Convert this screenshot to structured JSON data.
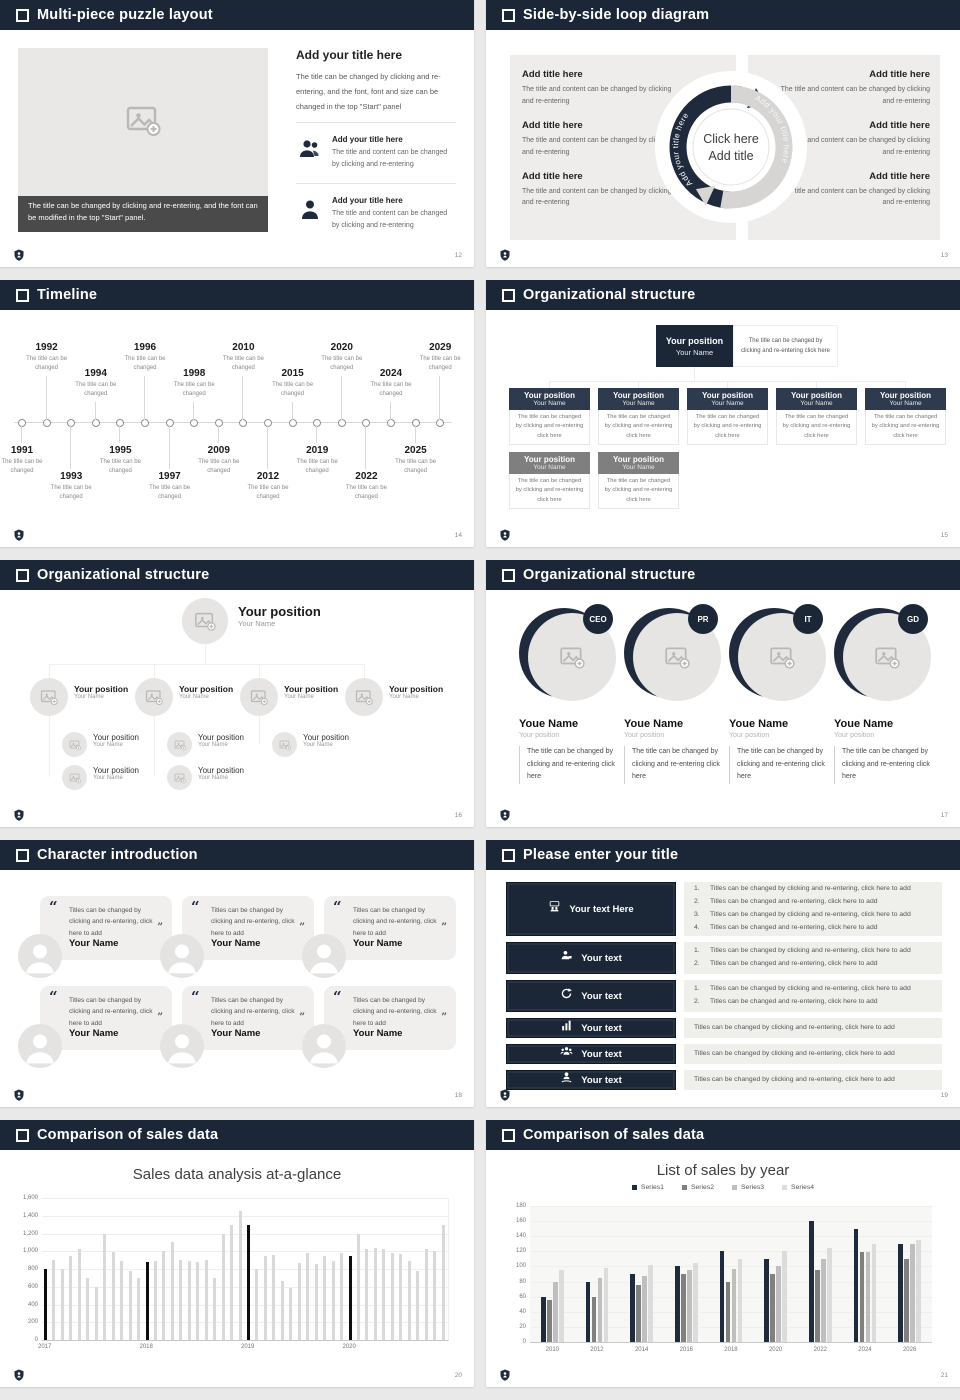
{
  "page": {
    "background": "#e9e9e9",
    "slide_background": "#ffffff"
  },
  "colors": {
    "header_navy": "#1b2737",
    "caption_gray": "#4a4a4a",
    "panel_gray": "#eeedeb",
    "org_gray_header": "#7f7f7f",
    "bar_light": "#d9d9d9",
    "bar_highlight": "#0d0d0d",
    "series1": "#1f2a3c",
    "series2": "#808080",
    "series3": "#bfbfbf",
    "series4": "#dcdcdc"
  },
  "slides": {
    "s12": {
      "page_no": "12",
      "title": "Multi-piece puzzle layout",
      "image_caption": "The title can be changed by clicking and re-entering, and the font can be modified in the top \"Start\" panel.",
      "right_title": "Add your title here",
      "right_body": "The title can be changed by clicking and re-entering, and the font, font and size can be changed in the top \"Start\" panel",
      "items": [
        {
          "icon": "people-icon",
          "title": "Add your title here",
          "body": "The title and content can be changed by clicking and re-entering"
        },
        {
          "icon": "person-icon",
          "title": "Add your title here",
          "body": "The title and content can be changed by clicking and re-entering"
        }
      ]
    },
    "s13": {
      "page_no": "13",
      "title": "Side-by-side loop diagram",
      "block_title": "Add title here",
      "block_body": "The title and content can be changed by clicking and re-entering",
      "left_block_count": 3,
      "right_block_count": 3,
      "arc_text_left": "Add your title here",
      "arc_text_right": "Add your title here",
      "center_line1": "Click here",
      "center_line2": "Add title"
    },
    "s14": {
      "page_no": "14",
      "title": "Timeline",
      "entry_caption": "The title can be changed",
      "years": [
        "1991",
        "1992",
        "1993",
        "1994",
        "1995",
        "1996",
        "1997",
        "1998",
        "2009",
        "2010",
        "2012",
        "2015",
        "2019",
        "2020",
        "2022",
        "2024",
        "2025",
        "2029"
      ]
    },
    "s15": {
      "page_no": "15",
      "title": "Organizational structure",
      "position_label": "Your position",
      "name_label": "Your Name",
      "note_text": "The title can be changed by clicking and re-entering click here",
      "card_body": "The title can be changed by clicking and re-entering click here",
      "navy_card_count": 5,
      "gray_card_count": 2
    },
    "s16": {
      "page_no": "16",
      "title": "Organizational structure",
      "position_label": "Your position",
      "name_label": "Your Name",
      "branch_sub_counts": [
        2,
        2,
        1,
        0
      ]
    },
    "s17": {
      "page_no": "17",
      "title": "Organizational structure",
      "badges": [
        "CEO",
        "PR",
        "IT",
        "GD"
      ],
      "name_label": "Youe Name",
      "position_label": "Your position",
      "body": "The title can be changed by clicking and re-entering click here"
    },
    "s18": {
      "page_no": "18",
      "title": "Character introduction",
      "open_quote": "“",
      "close_quote": "”",
      "quote_text": "Titles can be changed by clicking and re-entering, click here to add",
      "name_label": "Your Name",
      "card_count": 6
    },
    "s19": {
      "page_no": "19",
      "title": "Please enter your title",
      "rows": [
        {
          "icon": "meeting-icon",
          "label": "Your text Here",
          "items": [
            "Titles can be changed by clicking and re-entering, click here to add",
            "Titles can be changed and re-entering, click here to add",
            "Titles can be changed by clicking and re-entering, click here to add",
            "Titles can be changed and re-entering, click here to add"
          ]
        },
        {
          "icon": "person-desk-icon",
          "label": "Your text",
          "items": [
            "Titles can be changed by clicking and re-entering, click here to add",
            "Titles can be changed and re-entering, click here to add"
          ]
        },
        {
          "icon": "refresh-icon",
          "label": "Your text",
          "items": [
            "Titles can be changed by clicking and re-entering, click here to add",
            "Titles can be changed and re-entering, click here to add"
          ]
        },
        {
          "icon": "bar-chart-icon",
          "label": "Your text",
          "items": [
            "Titles can be changed by clicking and re-entering, click here to add"
          ]
        },
        {
          "icon": "people-group-icon",
          "label": "Your text",
          "items": [
            "Titles can be changed by clicking and re-entering, click here to add"
          ]
        },
        {
          "icon": "hand-user-icon",
          "label": "Your text",
          "items": [
            "Titles can be changed by clicking and re-entering, click here to add"
          ]
        }
      ]
    },
    "s20": {
      "page_no": "20",
      "title": "Comparison of sales data",
      "chart_data": {
        "type": "bar",
        "title": "Sales data analysis at-a-glance",
        "ylim": [
          0,
          1600
        ],
        "yticks": [
          "0",
          "200",
          "400",
          "600",
          "800",
          "1,000",
          "1,200",
          "1,400",
          "1,600"
        ],
        "values": [
          800,
          900,
          800,
          950,
          1020,
          700,
          600,
          1200,
          990,
          890,
          780,
          700,
          880,
          890,
          1000,
          1100,
          900,
          890,
          880,
          900,
          700,
          1200,
          1300,
          1450,
          1300,
          800,
          950,
          960,
          670,
          590,
          870,
          980,
          860,
          950,
          890,
          980,
          950,
          1190,
          1020,
          1040,
          1020,
          980,
          970,
          890,
          780,
          1020,
          1000,
          1300
        ],
        "highlight_indices": [
          0,
          12,
          24,
          36
        ],
        "x_labels": [
          {
            "index": 0,
            "label": "2017"
          },
          {
            "index": 12,
            "label": "2018"
          },
          {
            "index": 24,
            "label": "2019"
          },
          {
            "index": 36,
            "label": "2020"
          }
        ],
        "bar_color": "#d9d9d9",
        "highlight_color": "#0d0d0d",
        "grid": true
      }
    },
    "s21": {
      "page_no": "21",
      "title": "Comparison of sales data",
      "chart_data": {
        "type": "grouped-bar",
        "title": "List of sales by year",
        "ylim": [
          0,
          180
        ],
        "ytick_step": 20,
        "categories": [
          "2010",
          "2012",
          "2014",
          "2016",
          "2018",
          "2020",
          "2022",
          "2024",
          "2026"
        ],
        "series": [
          {
            "name": "Series1",
            "color": "#1f2a3c",
            "values": [
              60,
              80,
              90,
              100,
              120,
              110,
              160,
              150,
              130
            ]
          },
          {
            "name": "Series2",
            "color": "#808080",
            "values": [
              55,
              60,
              75,
              90,
              80,
              90,
              95,
              119,
              110
            ]
          },
          {
            "name": "Series3",
            "color": "#bfbfbf",
            "values": [
              80,
              85,
              88,
              95,
              97,
              100,
              110,
              119,
              130
            ]
          },
          {
            "name": "Series4",
            "color": "#dcdcdc",
            "values": [
              95,
              98,
              102,
              105,
              110,
              120,
              125,
              130,
              135
            ]
          }
        ],
        "legend_position": "top",
        "grid": true
      }
    }
  }
}
